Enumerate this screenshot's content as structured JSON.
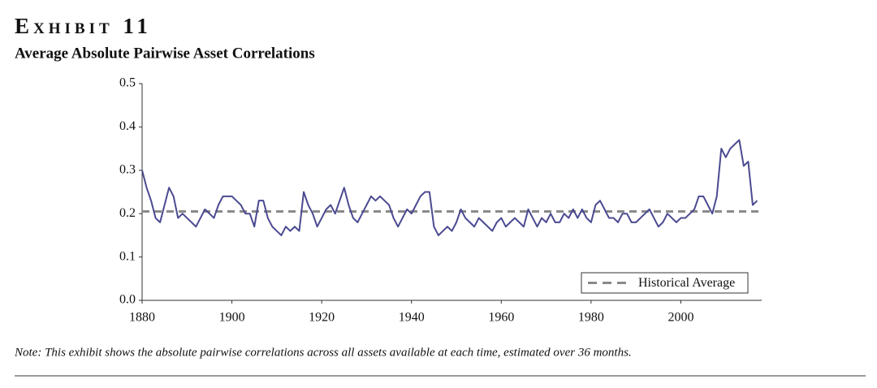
{
  "chart_data": {
    "type": "line",
    "title": "Exhibit 11",
    "subtitle": "Average Absolute Pairwise Asset Correlations",
    "note": "Note: This exhibit shows the absolute pairwise correlations across all assets available at each time, estimated over 36 months.",
    "xlim": [
      1880,
      2018
    ],
    "xticks": [
      1880,
      1900,
      1920,
      1940,
      1960,
      1980,
      2000
    ],
    "ylim": [
      0,
      0.5
    ],
    "yticks": [
      {
        "value": 0,
        "label": "0.0"
      },
      0.1,
      0.2,
      0.3,
      0.4,
      0.5
    ],
    "x": [
      1880,
      1881,
      1882,
      1883,
      1884,
      1885,
      1886,
      1887,
      1888,
      1889,
      1890,
      1891,
      1892,
      1893,
      1894,
      1895,
      1896,
      1897,
      1898,
      1899,
      1900,
      1901,
      1902,
      1903,
      1904,
      1905,
      1906,
      1907,
      1908,
      1909,
      1910,
      1911,
      1912,
      1913,
      1914,
      1915,
      1916,
      1917,
      1918,
      1919,
      1920,
      1921,
      1922,
      1923,
      1924,
      1925,
      1926,
      1927,
      1928,
      1929,
      1930,
      1931,
      1932,
      1933,
      1934,
      1935,
      1936,
      1937,
      1938,
      1939,
      1940,
      1941,
      1942,
      1943,
      1944,
      1945,
      1946,
      1947,
      1948,
      1949,
      1950,
      1951,
      1952,
      1953,
      1954,
      1955,
      1956,
      1957,
      1958,
      1959,
      1960,
      1961,
      1962,
      1963,
      1964,
      1965,
      1966,
      1967,
      1968,
      1969,
      1970,
      1971,
      1972,
      1973,
      1974,
      1975,
      1976,
      1977,
      1978,
      1979,
      1980,
      1981,
      1982,
      1983,
      1984,
      1985,
      1986,
      1987,
      1988,
      1989,
      1990,
      1991,
      1992,
      1993,
      1994,
      1995,
      1996,
      1997,
      1998,
      1999,
      2000,
      2001,
      2002,
      2003,
      2004,
      2005,
      2006,
      2007,
      2008,
      2009,
      2010,
      2011,
      2012,
      2013,
      2014,
      2015,
      2016,
      2017
    ],
    "series": [
      {
        "color": "#4b4a91",
        "values": [
          0.3,
          0.26,
          0.23,
          0.19,
          0.18,
          0.22,
          0.26,
          0.24,
          0.19,
          0.2,
          0.19,
          0.18,
          0.17,
          0.19,
          0.21,
          0.2,
          0.19,
          0.22,
          0.24,
          0.24,
          0.24,
          0.23,
          0.22,
          0.2,
          0.2,
          0.17,
          0.23,
          0.23,
          0.19,
          0.17,
          0.16,
          0.15,
          0.17,
          0.16,
          0.17,
          0.16,
          0.25,
          0.22,
          0.2,
          0.17,
          0.19,
          0.21,
          0.22,
          0.2,
          0.23,
          0.26,
          0.22,
          0.19,
          0.18,
          0.2,
          0.22,
          0.24,
          0.23,
          0.24,
          0.23,
          0.22,
          0.19,
          0.17,
          0.19,
          0.21,
          0.2,
          0.22,
          0.24,
          0.25,
          0.25,
          0.17,
          0.15,
          0.16,
          0.17,
          0.16,
          0.18,
          0.21,
          0.19,
          0.18,
          0.17,
          0.19,
          0.18,
          0.17,
          0.16,
          0.18,
          0.19,
          0.17,
          0.18,
          0.19,
          0.18,
          0.17,
          0.21,
          0.19,
          0.17,
          0.19,
          0.18,
          0.2,
          0.18,
          0.18,
          0.2,
          0.19,
          0.21,
          0.19,
          0.21,
          0.19,
          0.18,
          0.22,
          0.23,
          0.21,
          0.19,
          0.19,
          0.18,
          0.2,
          0.2,
          0.18,
          0.18,
          0.19,
          0.2,
          0.21,
          0.19,
          0.17,
          0.18,
          0.2,
          0.19,
          0.18,
          0.19,
          0.19,
          0.2,
          0.21,
          0.24,
          0.24,
          0.22,
          0.2,
          0.24,
          0.35,
          0.33,
          0.35,
          0.36,
          0.37,
          0.31,
          0.32,
          0.22,
          0.23
        ]
      }
    ],
    "reference_line": {
      "name": "Historical Average",
      "value": 0.205,
      "color": "#8a8a8a"
    },
    "legend": "lower right"
  }
}
